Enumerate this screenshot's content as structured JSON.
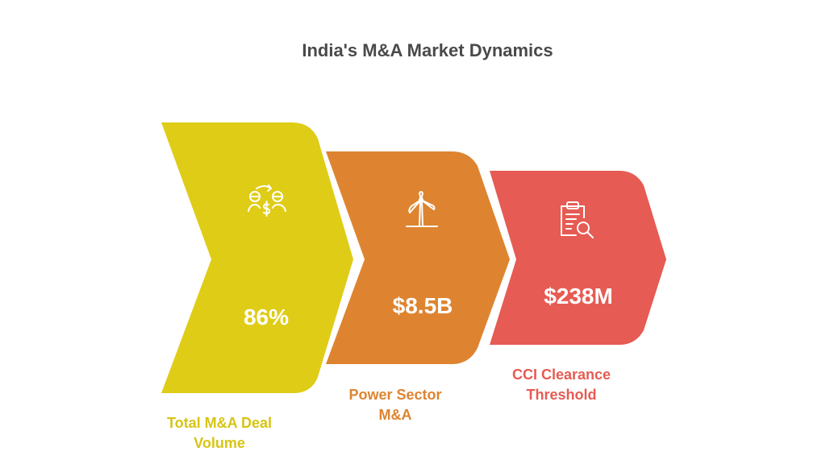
{
  "title": "India's M&A Market Dynamics",
  "steps": [
    {
      "value": "86%",
      "caption": "Total M&A Deal\nVolume",
      "color": "#dfcc16",
      "text_color": "#d7c414",
      "icon": "deal-exchange-icon"
    },
    {
      "value": "$8.5B",
      "caption": "Power Sector\nM&A",
      "color": "#de8430",
      "text_color": "#de8430",
      "icon": "wind-turbine-icon"
    },
    {
      "value": "$238M",
      "caption": "CCI Clearance\nThreshold",
      "color": "#e65b53",
      "text_color": "#e65b53",
      "icon": "clipboard-search-icon"
    }
  ]
}
